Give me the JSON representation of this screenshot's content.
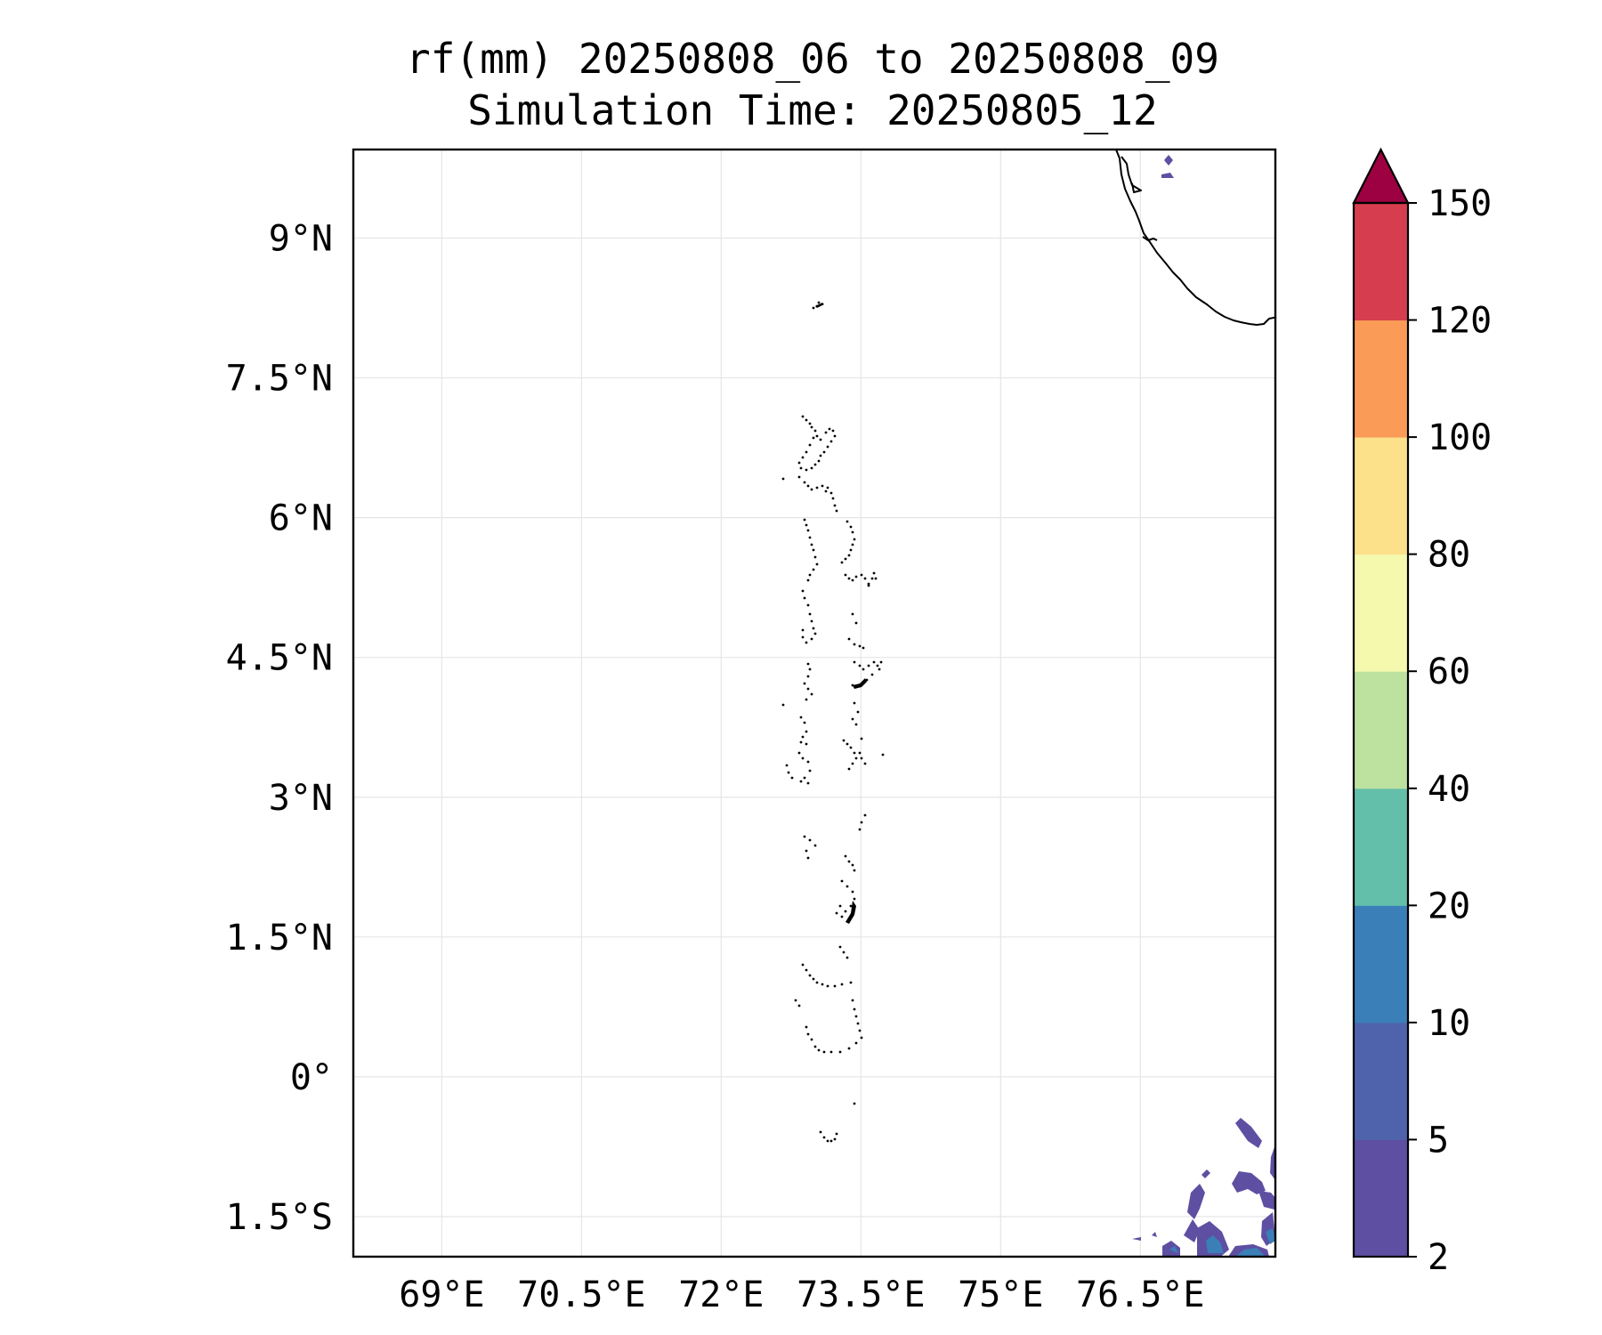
{
  "title_line1": "rf(mm) 20250808_06 to 20250808_09",
  "title_line2": "Simulation Time: 20250805_12",
  "map": {
    "lon_range": [
      68.05,
      77.95
    ],
    "lat_range": [
      -1.93,
      9.95
    ],
    "lon_ticks": [
      {
        "value": 69,
        "label": "69°E"
      },
      {
        "value": 70.5,
        "label": "70.5°E"
      },
      {
        "value": 72,
        "label": "72°E"
      },
      {
        "value": 73.5,
        "label": "73.5°E"
      },
      {
        "value": 75,
        "label": "75°E"
      },
      {
        "value": 76.5,
        "label": "76.5°E"
      }
    ],
    "lat_ticks": [
      {
        "value": 9,
        "label": "9°N"
      },
      {
        "value": 7.5,
        "label": "7.5°N"
      },
      {
        "value": 6,
        "label": "6°N"
      },
      {
        "value": 4.5,
        "label": "4.5°N"
      },
      {
        "value": 3,
        "label": "3°N"
      },
      {
        "value": 1.5,
        "label": "1.5°N"
      },
      {
        "value": 0,
        "label": "0°"
      },
      {
        "value": -1.5,
        "label": "1.5°S"
      }
    ],
    "grid": true
  },
  "colorbar": {
    "levels": [
      "2",
      "5",
      "10",
      "20",
      "40",
      "60",
      "80",
      "100",
      "120",
      "150"
    ],
    "colors": [
      "#5e4fa2",
      "#4f63ad",
      "#3a7fb8",
      "#63bfa9",
      "#bde29f",
      "#f4f9ad",
      "#fde08a",
      "#fa9c57",
      "#d63e4f"
    ],
    "extend_color": "#9e0142",
    "extend": "max"
  },
  "chart_data": {
    "type": "heatmap",
    "title": "rf(mm) 20250808_06 to 20250808_09",
    "subtitle": "Simulation Time: 20250805_12",
    "variable_unit": "mm",
    "xrange": [
      68.05,
      77.95
    ],
    "yrange": [
      -1.93,
      9.95
    ],
    "levels": [
      2,
      5,
      10,
      20,
      40,
      60,
      80,
      100,
      120,
      150
    ],
    "extend": "max",
    "rain_cells": [
      {
        "lon": 77.2,
        "lat": -0.6,
        "value": 4
      },
      {
        "lon": 77.4,
        "lat": -1.1,
        "value": 5
      },
      {
        "lon": 77.6,
        "lat": -1.25,
        "value": 4
      },
      {
        "lon": 76.9,
        "lat": -1.45,
        "value": 4
      },
      {
        "lon": 77.1,
        "lat": -1.75,
        "value": 6
      },
      {
        "lon": 77.4,
        "lat": -1.85,
        "value": 12
      },
      {
        "lon": 77.85,
        "lat": -1.6,
        "value": 8
      },
      {
        "lon": 77.92,
        "lat": -0.9,
        "value": 4
      },
      {
        "lon": 76.85,
        "lat": 9.75,
        "value": 3
      },
      {
        "lon": 76.85,
        "lat": 9.55,
        "value": 3
      }
    ],
    "grid": true
  }
}
